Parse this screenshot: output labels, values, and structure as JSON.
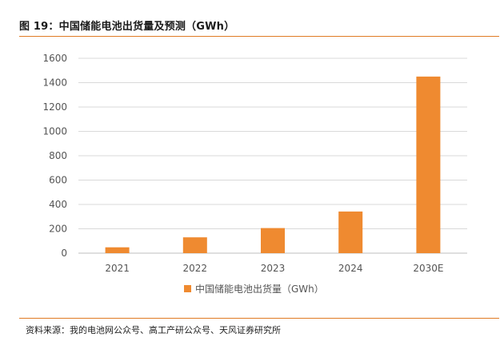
{
  "figure": {
    "label": "图 19：",
    "title": "中国储能电池出货量及预测（GWh）"
  },
  "source": "资料来源：我的电池网公众号、高工产研公众号、天风证券研究所",
  "colors": {
    "accent": "#e07a24",
    "bar": "#ef8a30",
    "grid": "#d9d9d9",
    "axis": "#bfbfbf"
  },
  "chart_data": {
    "type": "bar",
    "title": "",
    "xlabel": "",
    "ylabel": "",
    "categories": [
      "2021",
      "2022",
      "2023",
      "2024",
      "2030E"
    ],
    "series": [
      {
        "name": "中国储能电池出货量（GWh）",
        "values": [
          48,
          130,
          206,
          342,
          1450
        ]
      }
    ],
    "ylim": [
      0,
      1600
    ],
    "yticks": [
      0,
      200,
      400,
      600,
      800,
      1000,
      1200,
      1400,
      1600
    ],
    "grid": true,
    "legend_position": "bottom"
  }
}
